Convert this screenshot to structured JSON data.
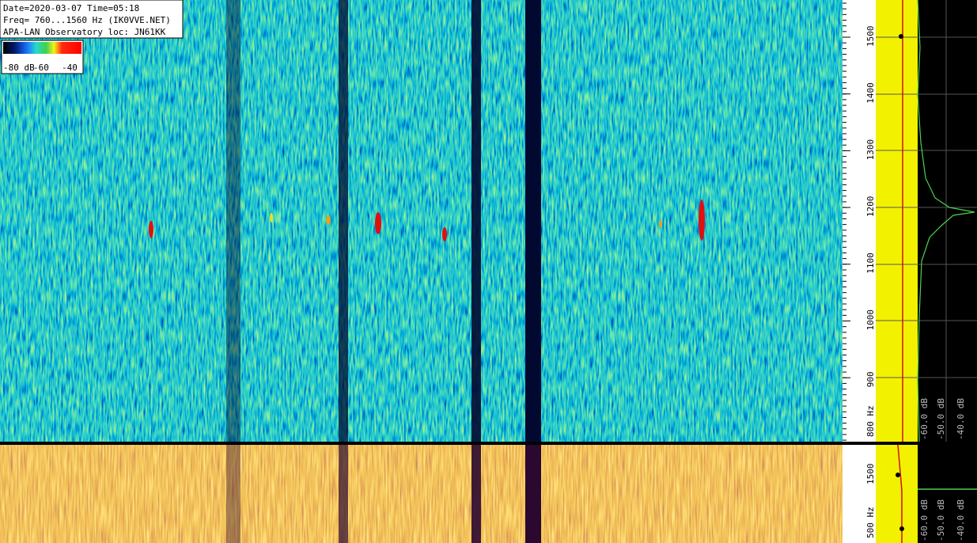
{
  "header": {
    "lines": [
      "Date=2020-03-07 Time=05:18",
      "Freq= 760...1560 Hz (IK0VVE.NET)",
      "APA-LAN Observatory loc: JN61KK"
    ]
  },
  "colorbar": {
    "labels": [
      "-80 dB",
      "-60",
      "-40"
    ]
  },
  "freq_axis": {
    "ticks": [
      1500,
      1400,
      1300,
      1200,
      1100,
      1000,
      900
    ],
    "last_label": "800 Hz"
  },
  "level_axis": {
    "labels": [
      "-60.0 dB",
      "-50.0 dB",
      "-40.0 dB"
    ]
  },
  "lower_freq_axis": {
    "labels": [
      "1500",
      "500 Hz"
    ]
  },
  "lower_level_axis": {
    "labels": [
      "-60.0 dB",
      "-50.0 dB",
      "-40.0 dB"
    ]
  }
}
